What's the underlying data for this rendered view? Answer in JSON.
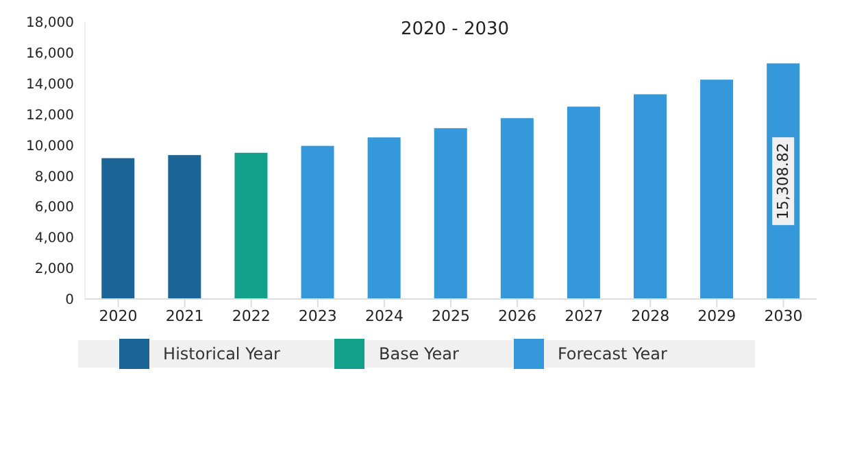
{
  "chart_data": {
    "type": "bar",
    "title": "2020 - 2030",
    "stacked": true,
    "categories": [
      "2020",
      "2021",
      "2022",
      "2023",
      "2024",
      "2025",
      "2026",
      "2027",
      "2028",
      "2029",
      "2030"
    ],
    "series": [
      {
        "name": "Historical Year",
        "color": "#1a6496",
        "values": [
          9150,
          9350,
          null,
          null,
          null,
          null,
          null,
          null,
          null,
          null,
          null
        ]
      },
      {
        "name": "Base Year",
        "color": "#13a08a",
        "values": [
          null,
          null,
          9500,
          null,
          null,
          null,
          null,
          null,
          null,
          null,
          null
        ]
      },
      {
        "name": "Forecast Year",
        "color": "#3498db",
        "values": [
          null,
          null,
          null,
          9950,
          10500,
          11100,
          11750,
          12500,
          13300,
          14250,
          15308.82
        ],
        "value_labels": [
          null,
          null,
          null,
          null,
          null,
          null,
          null,
          null,
          null,
          null,
          "15,308.82"
        ]
      }
    ],
    "ylim": [
      0,
      18000
    ],
    "yticks": [
      0,
      {
        "value": 2000,
        "label": "2,000"
      },
      {
        "value": 4000,
        "label": "4,000"
      },
      {
        "value": 6000,
        "label": "6,000"
      },
      {
        "value": 8000,
        "label": "8,000"
      },
      {
        "value": 10000,
        "label": "10,000"
      },
      {
        "value": 12000,
        "label": "12,000"
      },
      {
        "value": 14000,
        "label": "14,000"
      },
      {
        "value": 16000,
        "label": "16,000"
      },
      {
        "value": 18000,
        "label": "18,000"
      }
    ],
    "legend": "bottom"
  }
}
